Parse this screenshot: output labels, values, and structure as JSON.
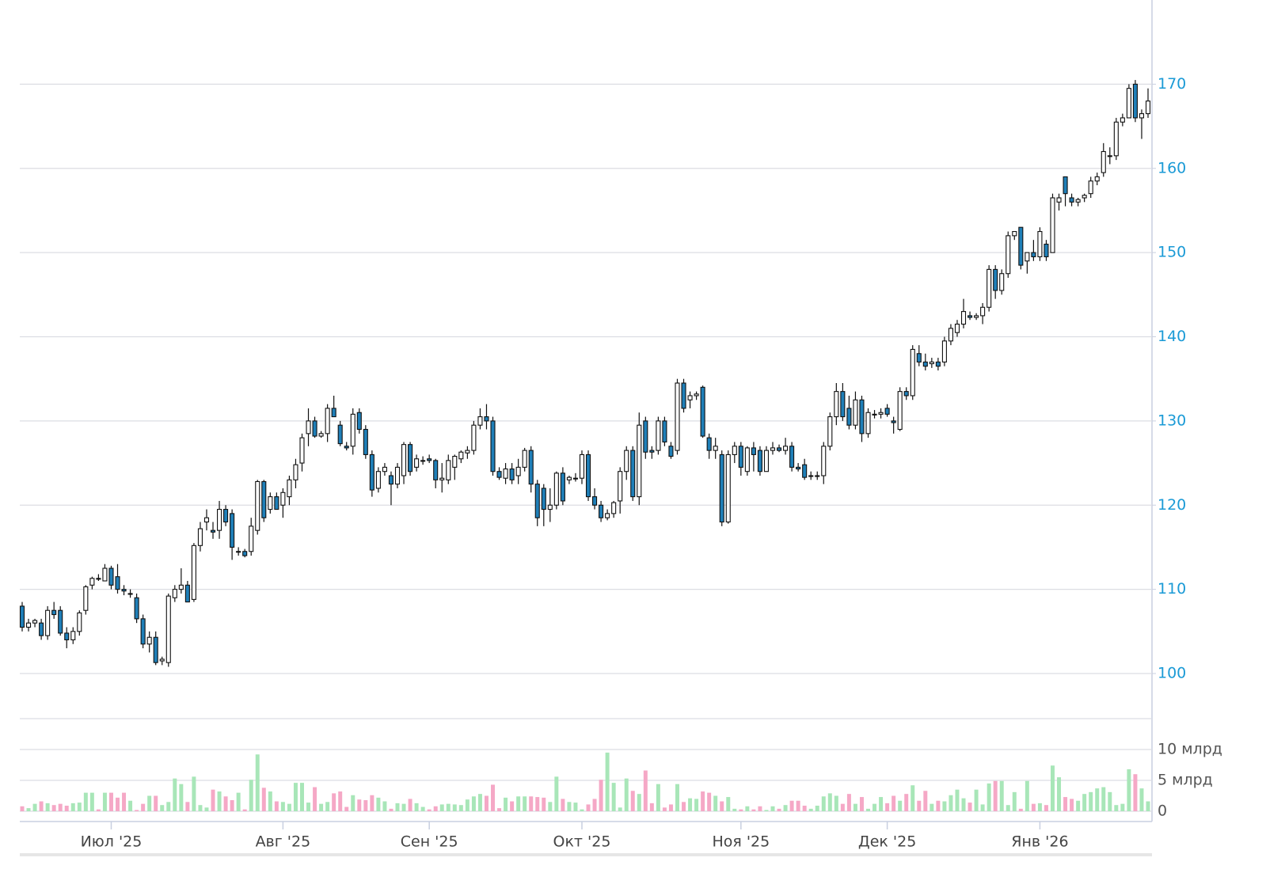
{
  "chart_data": {
    "type": "candlestick",
    "up_color": "#ffffff",
    "down_color": "#1f7fb8",
    "outline_color": "#111111",
    "volume_up_color": "#a8e6b8",
    "volume_down_color": "#f5a8c6",
    "xlim": [
      0,
      177
    ],
    "xticks": [
      {
        "value": 14,
        "label": "Июл '25"
      },
      {
        "value": 41,
        "label": "Авг '25"
      },
      {
        "value": 64,
        "label": "Сен '25"
      },
      {
        "value": 88,
        "label": "Окт '25"
      },
      {
        "value": 113,
        "label": "Ноя '25"
      },
      {
        "value": 136,
        "label": "Дек '25"
      },
      {
        "value": 160,
        "label": "Янв '26"
      }
    ],
    "ylim": [
      100,
      180
    ],
    "yticks": [
      100,
      110,
      120,
      130,
      140,
      150,
      160,
      170
    ],
    "volume_ylim": [
      0,
      15
    ],
    "volume_yticks": [
      {
        "value": 0,
        "label": "0"
      },
      {
        "value": 5,
        "label": "5 млрд"
      },
      {
        "value": 10,
        "label": "10 млрд"
      }
    ],
    "grid": true,
    "open": [
      108,
      105.5,
      106,
      106,
      104.5,
      107.5,
      107.5,
      104.8,
      104,
      105,
      107.5,
      110.5,
      111.3,
      111,
      112.5,
      111.5,
      110,
      109.5,
      109,
      106.5,
      103.5,
      104.3,
      101.5,
      101.3,
      109,
      110,
      110.5,
      108.8,
      115.2,
      118,
      117,
      117,
      119.5,
      119,
      114.5,
      114.5,
      114.5,
      117,
      122.8,
      119.5,
      121,
      120,
      121,
      123,
      125,
      128.5,
      130,
      128.2,
      128.5,
      131.5,
      129.5,
      127,
      127,
      131,
      129,
      126,
      122,
      124,
      123.5,
      122.5,
      123.5,
      127.2,
      124.5,
      125.3,
      125.5,
      125.3,
      123,
      123,
      124.5,
      125.5,
      126.2,
      126.5,
      129.5,
      130.5,
      130,
      124,
      123.2,
      124.3,
      123.5,
      124.5,
      126.5,
      122.5,
      122,
      119.5,
      120,
      123.8,
      123,
      123.2,
      123.2,
      126,
      121,
      120,
      118.5,
      119,
      120.5,
      124,
      126.5,
      121,
      130,
      126.5,
      126.5,
      130,
      127,
      126.5,
      134.5,
      132.5,
      133,
      134,
      128,
      126.5,
      126,
      118,
      126,
      127,
      124,
      126.8,
      126.5,
      124,
      126.5,
      126.8,
      126.5,
      127,
      124.5,
      124.8,
      123.5,
      123.5,
      123.5,
      127,
      130.5,
      133.5,
      131.5,
      129.5,
      132.5,
      128.5,
      130.8,
      130.8,
      131.5,
      130,
      129,
      133.5,
      133,
      138,
      137,
      136.8,
      137,
      137,
      139.5,
      140.5,
      141.5,
      142.5,
      142.3,
      142.5,
      143.5,
      148,
      145.5,
      147.5,
      152,
      153,
      149,
      150,
      149.5,
      151,
      150,
      156,
      159,
      156.5,
      156,
      156.5,
      157,
      158.5,
      159.5,
      161.5,
      161.5,
      165.5,
      166,
      170,
      166,
      166.5
    ],
    "high": [
      108.5,
      106.5,
      106.5,
      106.5,
      108,
      108.5,
      108,
      105.5,
      105.5,
      107.5,
      110.5,
      111.5,
      111.8,
      113,
      112.8,
      113,
      110.5,
      110,
      109.5,
      107,
      105,
      105,
      102,
      109.5,
      110.5,
      112.5,
      111,
      115.5,
      118,
      119.5,
      118,
      120.5,
      120,
      119.5,
      115,
      114.8,
      118.5,
      123,
      123,
      121.5,
      121.5,
      122,
      123.5,
      125.5,
      128.5,
      131.5,
      130.5,
      128.8,
      132,
      133,
      130,
      127.5,
      131.5,
      131.5,
      129.5,
      126.5,
      124.5,
      125,
      124,
      125,
      127.5,
      127.5,
      126,
      125.8,
      126,
      125.5,
      125,
      126,
      126,
      126.5,
      127,
      130,
      131.5,
      132,
      130.5,
      124.5,
      125,
      125,
      125.5,
      126.8,
      127,
      123,
      122.5,
      122,
      124,
      124.5,
      123.5,
      123.8,
      126.5,
      126.5,
      122,
      120.5,
      119.5,
      120.5,
      124.5,
      127,
      127,
      131,
      130.5,
      127,
      130.5,
      130.5,
      127.5,
      135,
      135,
      133.5,
      133.5,
      134.2,
      128.5,
      128,
      126.5,
      126.5,
      127.5,
      127.5,
      127,
      127.5,
      127,
      127,
      127.5,
      127.2,
      128,
      127.5,
      125,
      125.5,
      124,
      124,
      127.5,
      131,
      134.5,
      134.5,
      133,
      133.5,
      133,
      131.5,
      131.3,
      131.5,
      132,
      130.5,
      134,
      134,
      139,
      139,
      138,
      137.5,
      137.5,
      140,
      141.5,
      142,
      144.5,
      143,
      142.8,
      144,
      148.5,
      148.5,
      148,
      152.5,
      152.5,
      153,
      150,
      151.5,
      153,
      151.5,
      157,
      157,
      159,
      157,
      156.5,
      157,
      159,
      159.5,
      163,
      162.5,
      166,
      166.5,
      170,
      170.5,
      167,
      169.5
    ],
    "low": [
      105,
      105,
      105.5,
      104,
      104,
      106.5,
      104.5,
      103,
      103.5,
      104.5,
      107,
      110,
      111,
      111,
      110,
      109.5,
      109.3,
      109,
      106,
      103,
      102.5,
      101,
      101,
      100.8,
      108.5,
      109.5,
      108.5,
      108.5,
      114.5,
      117,
      116,
      116,
      117.5,
      113.5,
      114,
      113.8,
      114,
      116.5,
      118,
      119,
      119.5,
      118.5,
      120,
      122,
      124,
      127,
      128,
      128,
      127.5,
      130.5,
      127,
      126.5,
      126,
      128.5,
      125.5,
      121,
      121.5,
      123.5,
      120,
      122,
      122.5,
      123.5,
      124,
      124.8,
      125,
      122,
      121.5,
      122.5,
      123,
      125,
      125.5,
      126,
      129,
      129,
      123.5,
      123,
      122.5,
      122.5,
      122.5,
      124,
      121.5,
      117.5,
      117.5,
      118,
      119.5,
      120,
      122.5,
      122.8,
      122.5,
      120.5,
      119.5,
      118,
      118.2,
      118.5,
      119,
      123,
      120.5,
      120,
      125.5,
      125.5,
      126,
      127,
      125.5,
      126,
      131,
      131.5,
      132.5,
      128,
      125.5,
      125.5,
      117.5,
      117.8,
      125,
      123.5,
      123.5,
      124,
      123.5,
      124,
      126,
      126.3,
      126,
      124,
      124,
      123,
      123,
      123,
      122.5,
      126.5,
      129.5,
      130,
      129,
      129,
      127.5,
      128,
      130.3,
      130.3,
      130.5,
      128.5,
      128.8,
      132.5,
      132.5,
      136.5,
      136,
      136.3,
      136,
      136.5,
      139,
      140,
      141,
      142,
      142,
      141.5,
      143,
      144.5,
      145,
      147,
      151.5,
      148,
      147.5,
      149,
      149,
      149,
      150,
      155,
      155.5,
      155.5,
      155.5,
      156,
      156.5,
      158,
      159,
      160.5,
      161,
      165,
      166,
      165.5,
      163.5,
      166
    ],
    "close": [
      105.5,
      106,
      106.3,
      104.5,
      107.5,
      107,
      104.8,
      104,
      105,
      107.2,
      110.3,
      111.3,
      111.2,
      112.5,
      110.5,
      110,
      109.8,
      109.5,
      106.5,
      103.5,
      104.3,
      101.3,
      101.7,
      109.2,
      110,
      110.5,
      108.5,
      115.2,
      117.2,
      118.5,
      116.8,
      119.5,
      118,
      115,
      114.5,
      114,
      117.5,
      122.8,
      118.5,
      121,
      119.5,
      121.5,
      123,
      124.8,
      128,
      130,
      128.2,
      128.5,
      131.5,
      130.5,
      127.3,
      126.8,
      130.8,
      129,
      126,
      121.8,
      124,
      124.5,
      122.5,
      124.5,
      127.2,
      124,
      125.5,
      125.3,
      125.3,
      123,
      123.2,
      125.3,
      125.8,
      126.3,
      126.5,
      129.5,
      130.5,
      130,
      124,
      123.3,
      124.3,
      123,
      124.5,
      126.5,
      122.5,
      118.5,
      119.5,
      120,
      123.8,
      120.5,
      123.3,
      123.2,
      126,
      121,
      120,
      118.5,
      119,
      120.3,
      124,
      126.5,
      121,
      129.5,
      126.3,
      126.3,
      130,
      127.5,
      125.8,
      134.5,
      131.5,
      133,
      133.2,
      128.2,
      126.5,
      127,
      118,
      126,
      127,
      124.5,
      126.8,
      126,
      124,
      126.5,
      126.8,
      126.5,
      127,
      124.5,
      124.3,
      123.3,
      123.5,
      123.5,
      127,
      130.5,
      133.5,
      130.5,
      129.5,
      132.5,
      128.5,
      131,
      130.8,
      131,
      130.8,
      129.8,
      133.5,
      133,
      138.5,
      137,
      136.5,
      137,
      136.5,
      139.5,
      141,
      141.5,
      143,
      142.3,
      142.5,
      143.5,
      148,
      145.5,
      147.5,
      152,
      152.5,
      148.5,
      150,
      149.5,
      152.5,
      149.5,
      156.5,
      156.5,
      157,
      156,
      156.3,
      156.8,
      158.5,
      159,
      162,
      161.5,
      165.5,
      166,
      169.5,
      166,
      166.5,
      168
    ],
    "volume": [
      0.8,
      0.5,
      1.2,
      1.6,
      1.3,
      1.0,
      1.2,
      0.9,
      1.3,
      1.4,
      3.0,
      3.0,
      0.3,
      3.0,
      3.0,
      2.2,
      3.0,
      1.7,
      0.2,
      1.2,
      2.5,
      2.5,
      1.0,
      1.5,
      5.3,
      4.4,
      1.5,
      5.6,
      1.0,
      0.6,
      3.5,
      3.2,
      2.4,
      1.8,
      3.0,
      0.3,
      5.1,
      9.2,
      3.8,
      3.2,
      1.6,
      1.5,
      1.2,
      4.6,
      4.6,
      1.4,
      3.9,
      1.2,
      1.5,
      2.9,
      3.2,
      0.7,
      2.6,
      1.9,
      1.8,
      2.6,
      2.2,
      1.6,
      0.4,
      1.3,
      1.2,
      2.0,
      1.3,
      0.7,
      0.3,
      0.8,
      1.1,
      1.2,
      1.1,
      1.0,
      1.9,
      2.4,
      2.8,
      2.5,
      4.3,
      0.5,
      2.2,
      1.6,
      2.4,
      2.4,
      2.4,
      2.3,
      2.2,
      1.5,
      5.6,
      2.0,
      1.5,
      1.4,
      0.3,
      1.1,
      2.0,
      5.1,
      9.5,
      4.6,
      0.6,
      5.3,
      3.3,
      2.8,
      6.6,
      1.3,
      4.4,
      0.6,
      1.1,
      4.4,
      1.5,
      2.1,
      2.0,
      3.2,
      3.0,
      2.5,
      1.6,
      2.3,
      0.4,
      0.3,
      0.8,
      0.3,
      0.8,
      0.2,
      0.8,
      0.4,
      1.0,
      1.7,
      1.7,
      0.9,
      0.4,
      0.9,
      2.4,
      2.9,
      2.5,
      1.2,
      2.8,
      1.2,
      2.3,
      0.4,
      1.2,
      2.3,
      1.3,
      2.5,
      1.7,
      2.8,
      4.2,
      1.7,
      3.3,
      1.2,
      1.7,
      1.6,
      2.6,
      3.5,
      2.1,
      1.4,
      3.5,
      1.1,
      4.5,
      4.9,
      4.9,
      1.0,
      3.1,
      0.4,
      4.9,
      1.2,
      1.3,
      1.0,
      7.4,
      5.5,
      2.3,
      2.0,
      1.7,
      2.8,
      3.1,
      3.7,
      3.9,
      3.1,
      1.0,
      1.2,
      6.8,
      6.0,
      3.7,
      1.6
    ]
  }
}
